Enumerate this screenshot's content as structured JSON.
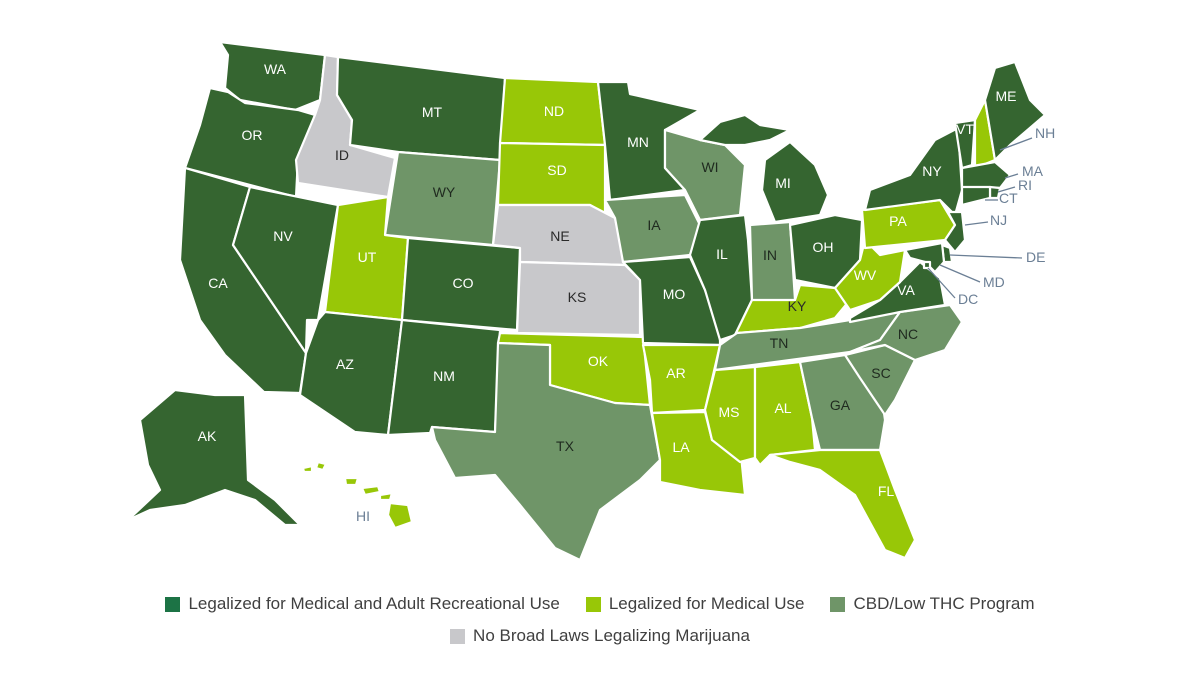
{
  "colors": {
    "rec": "#356530",
    "med": "#98c707",
    "cbd": "#6f9568",
    "none": "#c8c8cb",
    "legend_rec": "#1c7345",
    "label_dark": "#2a2a2a",
    "label_light": "#ffffff",
    "external_label": "#6b7f95"
  },
  "legend": [
    {
      "key": "rec",
      "label": "Legalized for Medical and Adult Recreational Use"
    },
    {
      "key": "med",
      "label": "Legalized for Medical Use"
    },
    {
      "key": "cbd",
      "label": "CBD/Low THC Program"
    },
    {
      "key": "none",
      "label": "No Broad Laws Legalizing Marijuana"
    }
  ],
  "states": {
    "WA": "rec",
    "OR": "rec",
    "CA": "rec",
    "NV": "rec",
    "AZ": "rec",
    "MT": "rec",
    "CO": "rec",
    "NM": "rec",
    "MN": "rec",
    "MO": "rec",
    "IL": "rec",
    "MI": "rec",
    "OH": "rec",
    "VA": "rec",
    "NY": "rec",
    "VT": "rec",
    "ME": "rec",
    "MA": "rec",
    "RI": "rec",
    "CT": "rec",
    "NJ": "rec",
    "DE": "rec",
    "MD": "rec",
    "DC": "rec",
    "AK": "rec",
    "ND": "med",
    "SD": "med",
    "UT": "med",
    "OK": "med",
    "AR": "med",
    "LA": "med",
    "MS": "med",
    "AL": "med",
    "FL": "med",
    "KY": "med",
    "WV": "med",
    "PA": "med",
    "NH": "med",
    "HI": "med",
    "WY": "cbd",
    "TX": "cbd",
    "IA": "cbd",
    "WI": "cbd",
    "IN": "cbd",
    "TN": "cbd",
    "NC": "cbd",
    "SC": "cbd",
    "GA": "cbd",
    "ID": "none",
    "NE": "none",
    "KS": "none"
  },
  "labels": {
    "WA": "WA",
    "OR": "OR",
    "CA": "CA",
    "NV": "NV",
    "ID": "ID",
    "MT": "MT",
    "WY": "WY",
    "UT": "UT",
    "CO": "CO",
    "AZ": "AZ",
    "NM": "NM",
    "ND": "ND",
    "SD": "SD",
    "NE": "NE",
    "KS": "KS",
    "OK": "OK",
    "TX": "TX",
    "MN": "MN",
    "IA": "IA",
    "MO": "MO",
    "AR": "AR",
    "LA": "LA",
    "WI": "WI",
    "IL": "IL",
    "MI": "MI",
    "IN": "IN",
    "OH": "OH",
    "KY": "KY",
    "TN": "TN",
    "MS": "MS",
    "AL": "AL",
    "GA": "GA",
    "FL": "FL",
    "SC": "SC",
    "NC": "NC",
    "VA": "VA",
    "WV": "WV",
    "PA": "PA",
    "NY": "NY",
    "VT": "VT",
    "NH": "NH",
    "ME": "ME",
    "MA": "MA",
    "RI": "RI",
    "CT": "CT",
    "NJ": "NJ",
    "DE": "DE",
    "MD": "MD",
    "DC": "DC",
    "AK": "AK",
    "HI": "HI"
  }
}
